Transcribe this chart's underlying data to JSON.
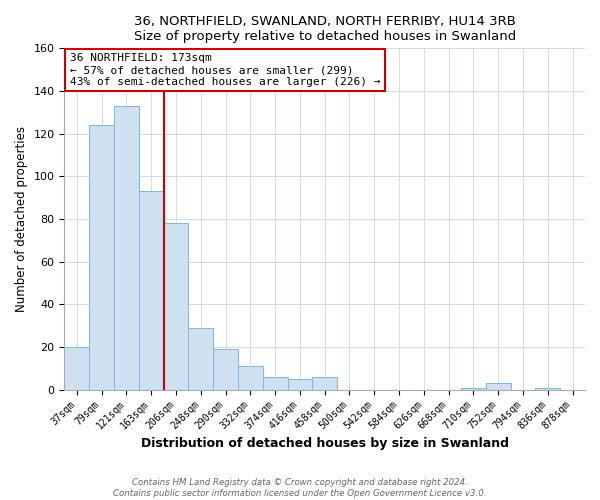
{
  "title1": "36, NORTHFIELD, SWANLAND, NORTH FERRIBY, HU14 3RB",
  "title2": "Size of property relative to detached houses in Swanland",
  "xlabel": "Distribution of detached houses by size in Swanland",
  "ylabel": "Number of detached properties",
  "bar_labels": [
    "37sqm",
    "79sqm",
    "121sqm",
    "163sqm",
    "206sqm",
    "248sqm",
    "290sqm",
    "332sqm",
    "374sqm",
    "416sqm",
    "458sqm",
    "500sqm",
    "542sqm",
    "584sqm",
    "626sqm",
    "668sqm",
    "710sqm",
    "752sqm",
    "794sqm",
    "836sqm",
    "878sqm"
  ],
  "bar_values": [
    20,
    124,
    133,
    93,
    78,
    29,
    19,
    11,
    6,
    5,
    6,
    0,
    0,
    0,
    0,
    0,
    1,
    3,
    0,
    1,
    0
  ],
  "bar_color": "#cfe0f0",
  "bar_edge_color": "#7fb8dd",
  "highlight_line_color": "#cc0000",
  "annotation_title": "36 NORTHFIELD: 173sqm",
  "annotation_line1": "← 57% of detached houses are smaller (299)",
  "annotation_line2": "43% of semi-detached houses are larger (226) →",
  "annotation_box_color": "#ffffff",
  "annotation_box_edge": "#cc0000",
  "ylim": [
    0,
    160
  ],
  "yticks": [
    0,
    20,
    40,
    60,
    80,
    100,
    120,
    140,
    160
  ],
  "footer1": "Contains HM Land Registry data © Crown copyright and database right 2024.",
  "footer2": "Contains public sector information licensed under the Open Government Licence v3.0."
}
